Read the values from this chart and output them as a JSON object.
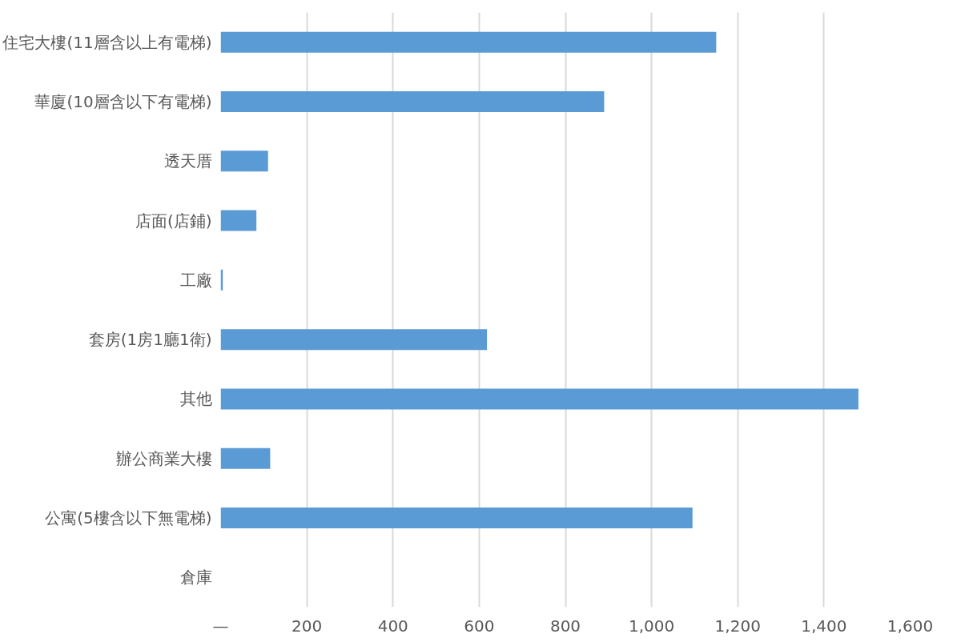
{
  "chart_data": {
    "type": "bar",
    "orientation": "horizontal",
    "categories": [
      "住宅大樓(11層含以上有電梯)",
      "華廈(10層含以下有電梯)",
      "透天厝",
      "店面(店鋪)",
      "工廠",
      "套房(1房1廳1衛)",
      "其他",
      "辦公商業大樓",
      "公寓(5樓含以下無電梯)",
      "倉庫"
    ],
    "values": [
      1150,
      890,
      110,
      83,
      5,
      618,
      1480,
      115,
      1095,
      0
    ],
    "color": "#5b9bd5",
    "xlim": [
      0,
      1600
    ],
    "xticks": [
      {
        "value": 0,
        "label": "—"
      },
      {
        "value": 200,
        "label": "200"
      },
      {
        "value": 400,
        "label": "400"
      },
      {
        "value": 600,
        "label": "600"
      },
      {
        "value": 800,
        "label": "800"
      },
      {
        "value": 1000,
        "label": "1,000"
      },
      {
        "value": 1200,
        "label": "1,200"
      },
      {
        "value": 1400,
        "label": "1,400"
      },
      {
        "value": 1600,
        "label": "1,600"
      }
    ],
    "grid": "x"
  }
}
